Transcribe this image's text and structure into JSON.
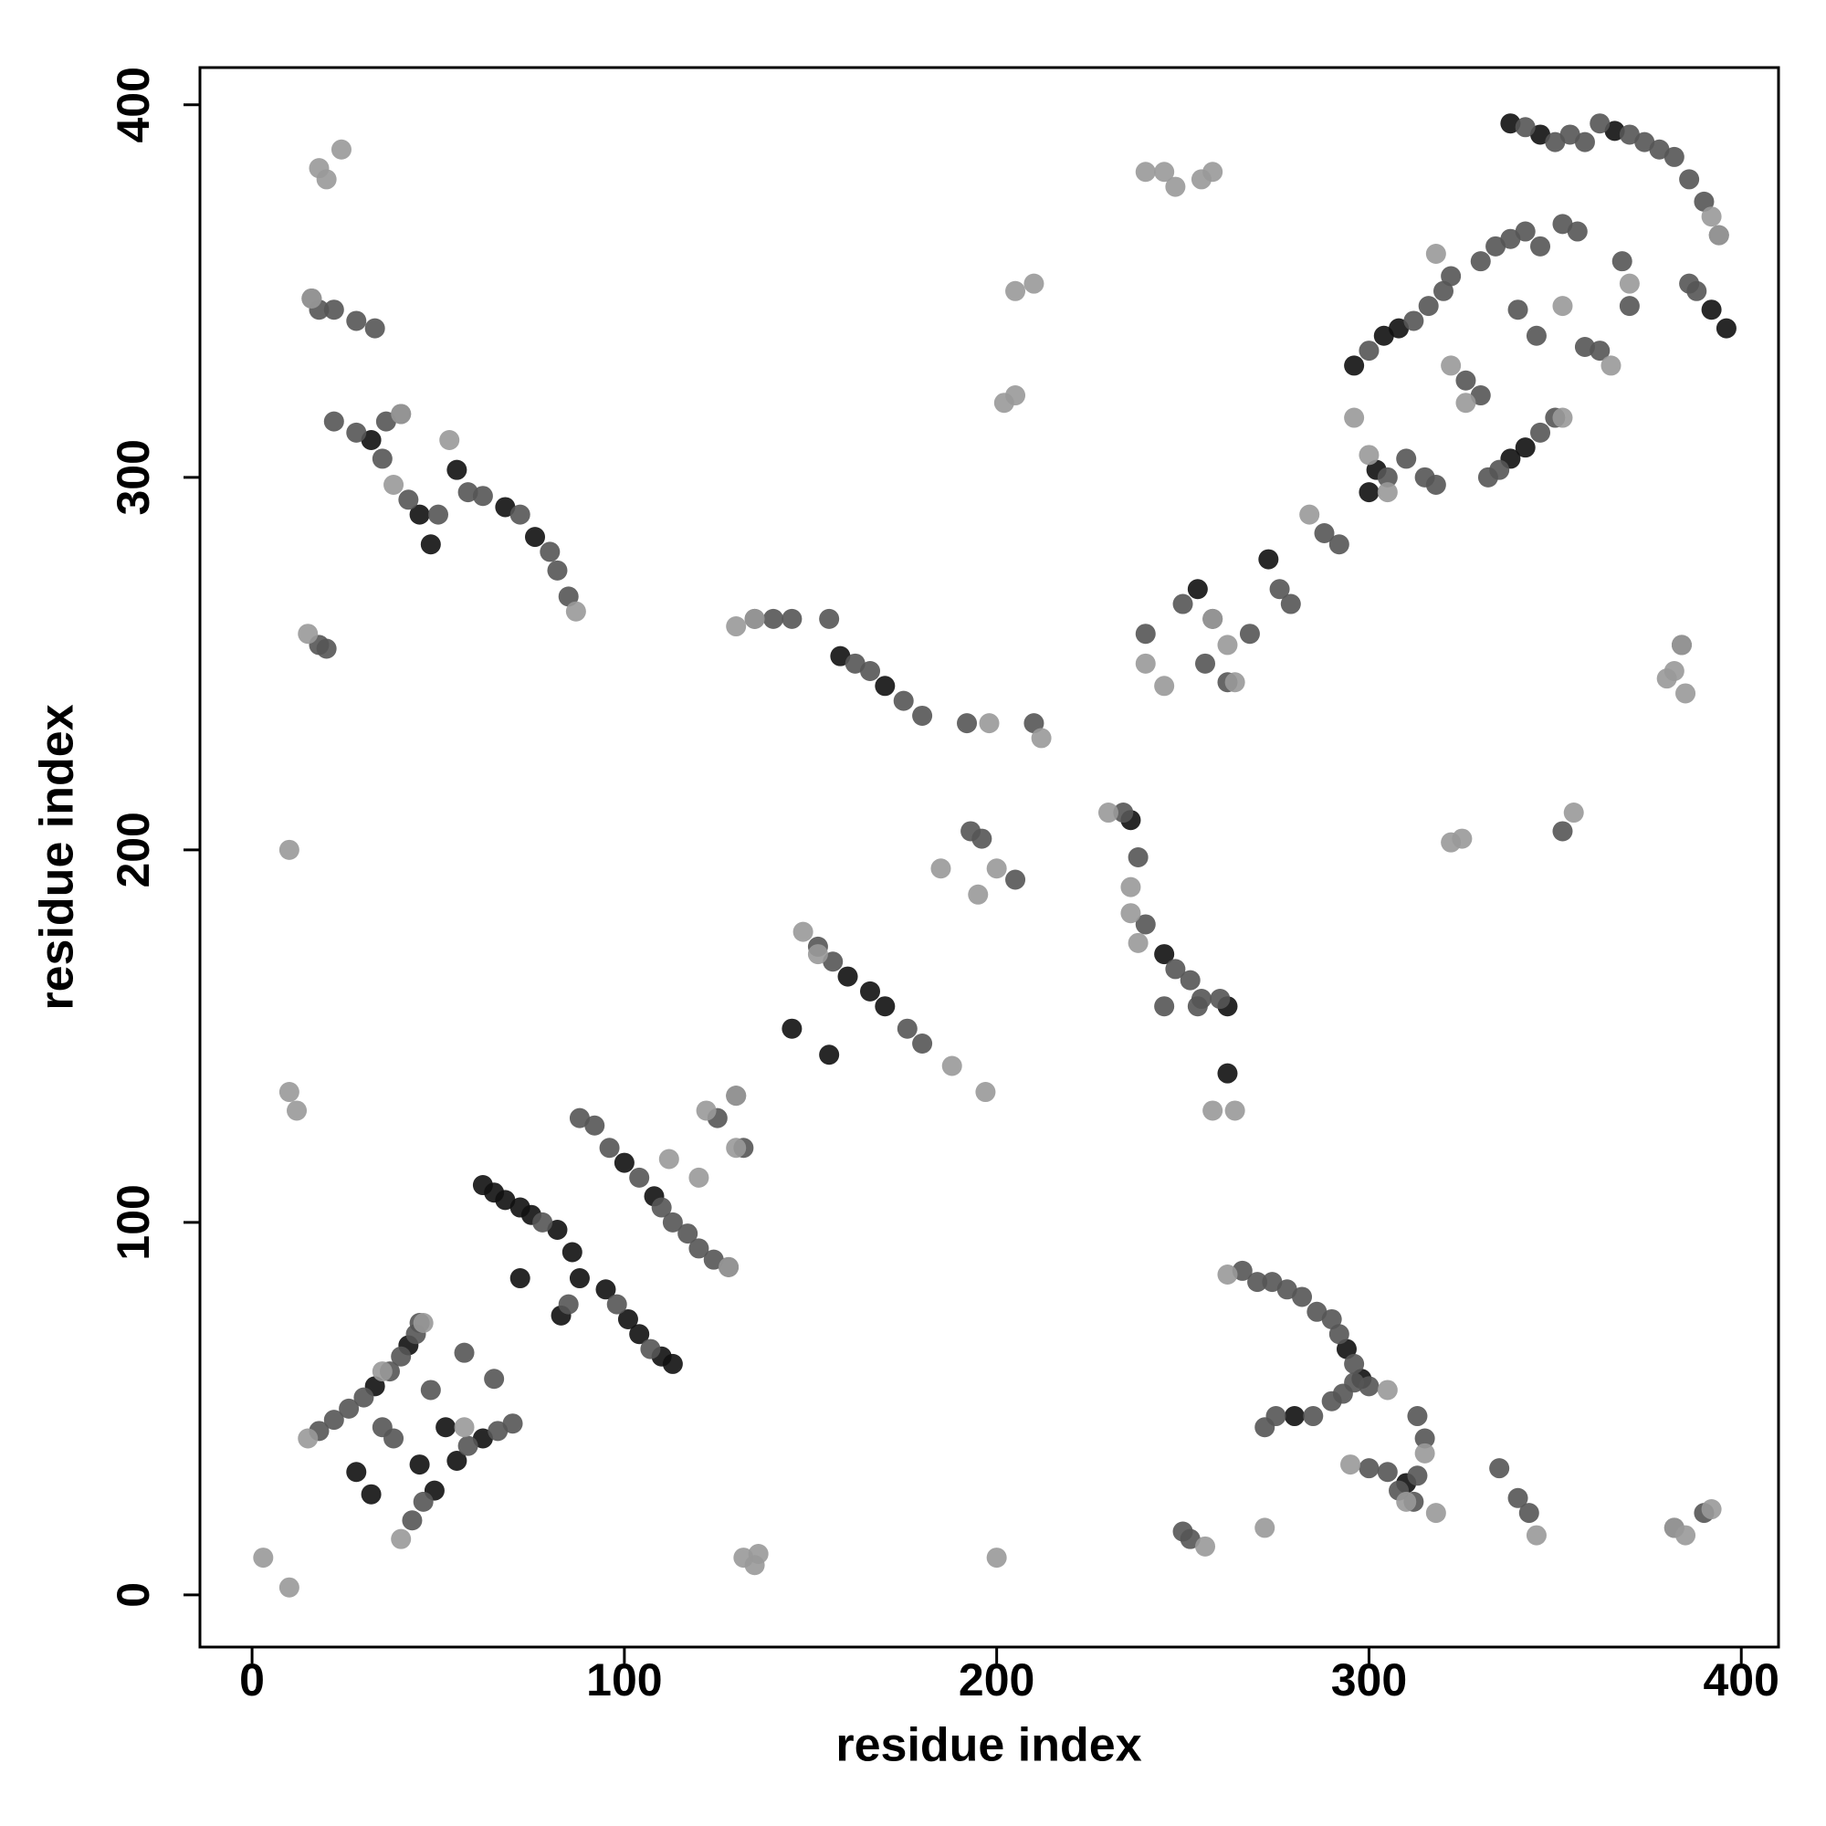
{
  "chart_data": {
    "type": "scatter",
    "xlabel": "residue index",
    "ylabel": "residue index",
    "xlim": [
      -14,
      410
    ],
    "ylim": [
      -14,
      410
    ],
    "xticks": [
      0,
      100,
      200,
      300,
      400
    ],
    "yticks": [
      0,
      100,
      200,
      300,
      400
    ],
    "series": [
      {
        "color": "#111111",
        "x": [
          62,
          65,
          68,
          72,
          75,
          82,
          86,
          88,
          95,
          101,
          104,
          110,
          113,
          72,
          83,
          32,
          45,
          48,
          55,
          68,
          76,
          160,
          166,
          170,
          145,
          155,
          158,
          170,
          236,
          245,
          262,
          262,
          302,
          296,
          304,
          308,
          338,
          342,
          338,
          346,
          396,
          294,
          298,
          310,
          280,
          28,
          32,
          45,
          52,
          33,
          42,
          49,
          55,
          62,
          108,
          100,
          300,
          273,
          254,
          366,
          392
        ],
        "values": [
          110,
          108,
          106,
          104,
          102,
          98,
          92,
          85,
          82,
          74,
          70,
          64,
          62,
          85,
          75,
          310,
          290,
          282,
          302,
          292,
          284,
          166,
          162,
          158,
          152,
          145,
          252,
          244,
          208,
          172,
          158,
          140,
          302,
          330,
          338,
          340,
          305,
          308,
          395,
          392,
          340,
          66,
          58,
          30,
          48,
          33,
          27,
          35,
          45,
          56,
          67,
          28,
          36,
          42,
          107,
          116,
          296,
          278,
          270,
          393,
          345
        ]
      },
      {
        "color": "#555555",
        "x": [
          18,
          22,
          26,
          30,
          37,
          40,
          44,
          43,
          46,
          58,
          66,
          70,
          35,
          38,
          57,
          65,
          78,
          85,
          92,
          98,
          107,
          88,
          96,
          104,
          110,
          113,
          117,
          120,
          124,
          128,
          125,
          130,
          132,
          152,
          156,
          176,
          180,
          193,
          196,
          205,
          135,
          140,
          145,
          155,
          162,
          166,
          175,
          180,
          192,
          210,
          22,
          28,
          36,
          40,
          35,
          42,
          50,
          58,
          62,
          72,
          80,
          82,
          85,
          18,
          20,
          234,
          238,
          240,
          248,
          252,
          255,
          260,
          245,
          254,
          240,
          250,
          258,
          256,
          262,
          268,
          276,
          279,
          288,
          292,
          305,
          310,
          315,
          318,
          300,
          312,
          316,
          320,
          322,
          330,
          334,
          338,
          342,
          346,
          352,
          356,
          332,
          335,
          346,
          350,
          330,
          326,
          340,
          345,
          358,
          362,
          342,
          350,
          354,
          358,
          362,
          370,
          374,
          378,
          382,
          386,
          390,
          394,
          388,
          386,
          370,
          368,
          266,
          270,
          274,
          278,
          282,
          286,
          290,
          292,
          296,
          300,
          290,
          293,
          296,
          313,
          315,
          313,
          308,
          312,
          300,
          305,
          285,
          275,
          272,
          250,
          252,
          335,
          340,
          343,
          382,
          390,
          45,
          48,
          16,
          18,
          22,
          28,
          33,
          384,
          352
        ],
        "values": [
          44,
          47,
          50,
          53,
          60,
          64,
          70,
          20,
          25,
          40,
          44,
          46,
          45,
          42,
          65,
          58,
          100,
          78,
          126,
          78,
          66,
          128,
          120,
          112,
          104,
          100,
          97,
          93,
          90,
          88,
          128,
          134,
          120,
          174,
          170,
          152,
          148,
          205,
          203,
          192,
          262,
          262,
          262,
          262,
          250,
          248,
          240,
          236,
          234,
          234,
          315,
          312,
          315,
          317,
          305,
          294,
          290,
          296,
          295,
          290,
          280,
          275,
          268,
          255,
          254,
          210,
          198,
          180,
          168,
          165,
          160,
          160,
          158,
          158,
          258,
          266,
          262,
          250,
          245,
          258,
          270,
          266,
          285,
          282,
          300,
          305,
          300,
          298,
          334,
          342,
          346,
          350,
          354,
          358,
          362,
          364,
          366,
          362,
          368,
          366,
          300,
          302,
          312,
          316,
          322,
          326,
          345,
          338,
          335,
          334,
          394,
          390,
          392,
          390,
          395,
          392,
          390,
          388,
          386,
          380,
          374,
          365,
          350,
          352,
          346,
          358,
          87,
          84,
          84,
          82,
          80,
          76,
          74,
          70,
          62,
          56,
          52,
          54,
          57,
          48,
          42,
          32,
          28,
          25,
          34,
          33,
          48,
          48,
          45,
          17,
          15,
          34,
          26,
          22,
          18,
          22,
          73,
          55,
          348,
          345,
          345,
          342,
          340,
          255,
          205
        ]
      },
      {
        "color": "#999999",
        "x": [
          3,
          10,
          15,
          40,
          46,
          57,
          35,
          128,
          130,
          130,
          122,
          112,
          120,
          132,
          135,
          136,
          148,
          152,
          188,
          185,
          195,
          200,
          197,
          200,
          10,
          10,
          12,
          130,
          135,
          212,
          198,
          202,
          205,
          205,
          210,
          240,
          245,
          248,
          255,
          258,
          18,
          20,
          24,
          16,
          40,
          38,
          87,
          53,
          15,
          230,
          236,
          258,
          264,
          236,
          238,
          240,
          258,
          262,
          245,
          264,
          284,
          296,
          300,
          305,
          318,
          322,
          326,
          352,
          352,
          365,
          370,
          394,
          392,
          382,
          384,
          385,
          380,
          322,
          325,
          355,
          262,
          305,
          310,
          318,
          315,
          295,
          256,
          272,
          345,
          385,
          382,
          392
        ],
        "values": [
          10,
          2,
          42,
          15,
          73,
          45,
          60,
          88,
          134,
          120,
          130,
          117,
          112,
          10,
          8,
          11,
          178,
          172,
          142,
          195,
          188,
          10,
          135,
          195,
          200,
          135,
          130,
          260,
          262,
          230,
          234,
          320,
          322,
          350,
          352,
          382,
          382,
          378,
          380,
          382,
          383,
          380,
          388,
          348,
          317,
          298,
          264,
          310,
          258,
          210,
          190,
          130,
          130,
          183,
          175,
          250,
          262,
          255,
          244,
          245,
          290,
          316,
          306,
          296,
          360,
          330,
          320,
          316,
          346,
          330,
          352,
          365,
          370,
          248,
          255,
          242,
          246,
          202,
          203,
          210,
          86,
          55,
          25,
          22,
          38,
          35,
          13,
          18,
          16,
          16,
          18,
          23
        ]
      }
    ]
  }
}
